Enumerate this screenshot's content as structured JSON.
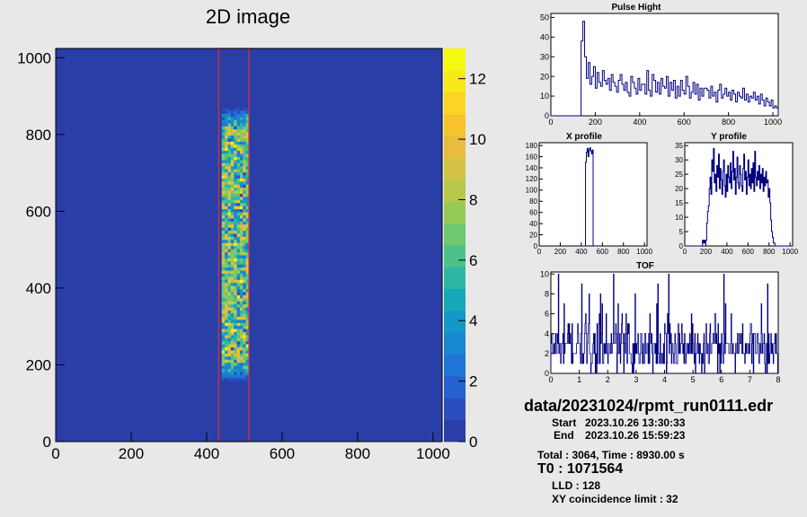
{
  "colors": {
    "background": "#e8e8e8",
    "frame_bg": "#ffffff",
    "hist_line": "#000080",
    "roi_box": "#e0302a"
  },
  "chart_data": [
    {
      "id": "image2d",
      "type": "heatmap",
      "title": "2D image",
      "x_ticks": [
        0,
        200,
        400,
        600,
        800,
        1000
      ],
      "y_ticks": [
        0,
        200,
        400,
        600,
        800,
        1000
      ],
      "xlim": [
        0,
        1024
      ],
      "ylim": [
        0,
        1024
      ],
      "z_ticks": [
        0,
        2,
        4,
        6,
        8,
        10,
        12
      ],
      "zlim": [
        0,
        13
      ],
      "roi": {
        "x_range": [
          432,
          512
        ],
        "y_range": [
          0,
          1024
        ]
      },
      "band": {
        "x_range": [
          440,
          510
        ],
        "y_range": [
          150,
          870
        ]
      },
      "colormap": [
        "#2a3ea8",
        "#2c4dbd",
        "#2760d0",
        "#1f74d6",
        "#1887d3",
        "#1498c8",
        "#17a8b8",
        "#2cb7a3",
        "#4cc28a",
        "#6fc96f",
        "#94cb57",
        "#b7c84a",
        "#d3c245",
        "#e8bc3c",
        "#f6c32d",
        "#fbd523",
        "#f9e81c",
        "#f5f90f"
      ]
    },
    {
      "id": "pulse",
      "type": "line",
      "title": "Pulse Hight",
      "x_ticks": [
        0,
        200,
        400,
        600,
        800,
        1000
      ],
      "y_ticks": [
        0,
        10,
        20,
        30,
        40,
        50
      ],
      "xlim": [
        0,
        1024
      ],
      "ylim": [
        0,
        52
      ],
      "x": [
        0,
        8,
        16,
        24,
        32,
        40,
        48,
        56,
        64,
        72,
        80,
        88,
        96,
        104,
        112,
        120,
        128,
        136,
        144,
        152,
        160,
        168,
        176,
        184,
        192,
        200,
        208,
        216,
        224,
        232,
        240,
        248,
        256,
        264,
        272,
        280,
        288,
        296,
        304,
        312,
        320,
        328,
        336,
        344,
        352,
        360,
        368,
        376,
        384,
        392,
        400,
        408,
        416,
        424,
        432,
        440,
        448,
        456,
        464,
        472,
        480,
        488,
        496,
        504,
        512,
        520,
        528,
        536,
        544,
        552,
        560,
        568,
        576,
        584,
        592,
        600,
        608,
        616,
        624,
        632,
        640,
        648,
        656,
        664,
        672,
        680,
        688,
        696,
        704,
        712,
        720,
        728,
        736,
        744,
        752,
        760,
        768,
        776,
        784,
        792,
        800,
        808,
        816,
        824,
        832,
        840,
        848,
        856,
        864,
        872,
        880,
        888,
        896,
        904,
        912,
        920,
        928,
        936,
        944,
        952,
        960,
        968,
        976,
        984,
        992,
        1000,
        1008,
        1016
      ],
      "values": [
        0,
        0,
        0,
        0,
        0,
        0,
        0,
        0,
        0,
        0,
        0,
        0,
        0,
        0,
        0,
        0,
        0,
        38,
        48,
        30,
        19,
        27,
        16,
        20,
        25,
        14,
        22,
        17,
        15,
        23,
        18,
        16,
        19,
        13,
        21,
        17,
        15,
        12,
        18,
        21,
        16,
        13,
        17,
        12,
        10,
        20,
        17,
        14,
        11,
        19,
        13,
        16,
        16,
        11,
        23,
        13,
        10,
        21,
        18,
        12,
        17,
        11,
        19,
        15,
        14,
        20,
        10,
        17,
        13,
        18,
        9,
        15,
        10,
        18,
        13,
        11,
        20,
        15,
        9,
        12,
        17,
        11,
        16,
        8,
        14,
        10,
        14,
        14,
        13,
        9,
        15,
        10,
        12,
        7,
        13,
        16,
        9,
        11,
        14,
        10,
        12,
        8,
        13,
        11,
        7,
        12,
        10,
        9,
        14,
        8,
        11,
        7,
        10,
        9,
        12,
        8,
        10,
        6,
        11,
        8,
        5,
        9,
        7,
        5,
        8,
        4,
        5,
        4
      ]
    },
    {
      "id": "xprof",
      "type": "line",
      "title": "X profile",
      "x_ticks": [
        0,
        200,
        400,
        600,
        800,
        1000
      ],
      "y_ticks": [
        0,
        20,
        40,
        60,
        80,
        100,
        120,
        140,
        160,
        180
      ],
      "xlim": [
        0,
        1024
      ],
      "ylim": [
        0,
        185
      ],
      "x": [
        400,
        408,
        416,
        424,
        432,
        440,
        448,
        456,
        464,
        472,
        480,
        488,
        496,
        504,
        512,
        520,
        528,
        536
      ],
      "values": [
        0,
        0,
        0,
        0,
        0,
        150,
        168,
        175,
        160,
        172,
        176,
        170,
        165,
        172,
        0,
        0,
        0,
        0
      ]
    },
    {
      "id": "yprof",
      "type": "line",
      "title": "Y profile",
      "x_ticks": [
        0,
        200,
        400,
        600,
        800,
        1000
      ],
      "y_ticks": [
        0,
        5,
        10,
        15,
        20,
        25,
        30,
        35
      ],
      "xlim": [
        0,
        1024
      ],
      "ylim": [
        0,
        36
      ],
      "x": [
        0,
        8,
        16,
        24,
        32,
        40,
        48,
        56,
        64,
        72,
        80,
        88,
        96,
        104,
        112,
        120,
        128,
        136,
        144,
        152,
        160,
        168,
        176,
        184,
        192,
        200,
        208,
        216,
        224,
        232,
        240,
        248,
        256,
        264,
        272,
        280,
        288,
        296,
        304,
        312,
        320,
        328,
        336,
        344,
        352,
        360,
        368,
        376,
        384,
        392,
        400,
        408,
        416,
        424,
        432,
        440,
        448,
        456,
        464,
        472,
        480,
        488,
        496,
        504,
        512,
        520,
        528,
        536,
        544,
        552,
        560,
        568,
        576,
        584,
        592,
        600,
        608,
        616,
        624,
        632,
        640,
        648,
        656,
        664,
        672,
        680,
        688,
        696,
        704,
        712,
        720,
        728,
        736,
        744,
        752,
        760,
        768,
        776,
        784,
        792,
        800,
        808,
        816,
        824,
        832,
        840,
        848,
        856,
        864,
        872,
        880,
        888,
        896,
        904,
        912,
        920,
        928,
        936,
        944,
        952,
        960,
        968,
        976,
        984,
        992,
        1000,
        1008,
        1016
      ],
      "values": [
        0,
        0,
        0,
        0,
        0,
        0,
        0,
        0,
        0,
        0,
        0,
        0,
        0,
        0,
        0,
        0,
        0,
        0,
        0,
        0,
        0,
        2,
        1,
        2,
        1,
        2,
        8,
        12,
        14,
        20,
        24,
        18,
        30,
        26,
        34,
        22,
        25,
        19,
        28,
        24,
        32,
        20,
        27,
        23,
        18,
        26,
        30,
        21,
        17,
        25,
        19,
        28,
        24,
        22,
        29,
        20,
        26,
        33,
        23,
        27,
        18,
        24,
        31,
        22,
        20,
        28,
        25,
        21,
        19,
        27,
        32,
        23,
        26,
        18,
        24,
        30,
        21,
        25,
        20,
        27,
        22,
        29,
        19,
        33,
        24,
        21,
        26,
        23,
        28,
        20,
        25,
        22,
        27,
        19,
        24,
        21,
        26,
        22,
        23,
        17,
        20,
        15,
        9,
        5,
        3,
        1,
        1,
        0,
        0,
        0,
        0,
        0,
        0,
        0,
        0,
        0,
        0,
        0,
        0,
        0,
        0,
        0,
        0,
        0,
        0,
        0,
        0,
        0
      ]
    },
    {
      "id": "tof",
      "type": "line",
      "title": "TOF",
      "x_ticks": [
        0,
        1,
        2,
        3,
        4,
        5,
        6,
        7,
        8
      ],
      "y_ticks": [
        0,
        2,
        4,
        6,
        8,
        10
      ],
      "xlim": [
        0,
        8
      ],
      "ylim": [
        0,
        10.2
      ]
    }
  ],
  "info": {
    "filename": "data/20231024/rpmt_run0111.edr",
    "start_label": "Start",
    "start_value": "2023.10.26 13:30:33",
    "end_label": "End",
    "end_value": "2023.10.26 15:59:23",
    "total_line": "Total : 3064, Time : 8930.00 s",
    "t0_line": "T0 : 1071564",
    "lld_line": "LLD : 128",
    "xy_line": "XY coincidence limit : 32"
  }
}
